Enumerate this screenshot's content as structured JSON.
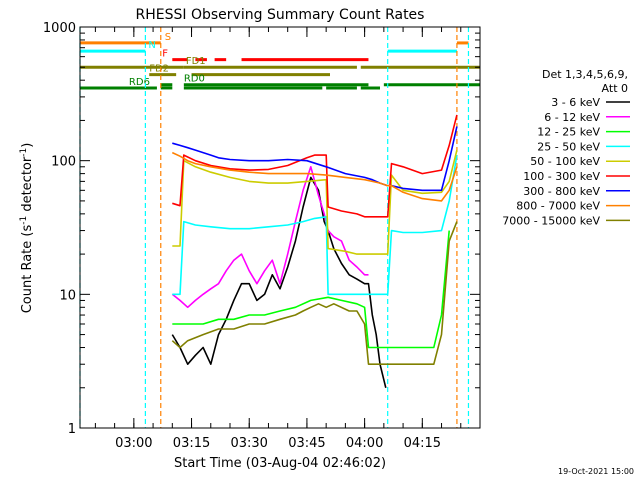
{
  "chart_data": {
    "type": "line",
    "title": "RHESSI Observing Summary Count Rates",
    "xlabel": "Start Time (03-Aug-04 02:46:02)",
    "ylabel_main": "Count Rate (s",
    "ylabel_sup": "-1",
    "ylabel_mid": " detector",
    "ylabel_end": ")",
    "yscale": "log",
    "ylim": [
      1,
      1000
    ],
    "xlim_min": [
      -14,
      90
    ],
    "ytick_labels": [
      "1",
      "10",
      "100",
      "1000"
    ],
    "ytick_values": [
      1,
      10,
      100,
      1000
    ],
    "xtick_labels": [
      "03:00",
      "03:15",
      "03:30",
      "03:45",
      "04:00",
      "04:15"
    ],
    "xtick_values": [
      0,
      15,
      30,
      45,
      60,
      75
    ],
    "legend": {
      "position": "right",
      "header1": "Det 1,3,4,5,6,9,",
      "header2": "Att 0",
      "entries": [
        {
          "label": "3 - 6 keV",
          "color": "#000000"
        },
        {
          "label": "6 - 12 keV",
          "color": "#ff00ff"
        },
        {
          "label": "12 - 25 keV",
          "color": "#00ff00"
        },
        {
          "label": "25 - 50 keV",
          "color": "#00ffff"
        },
        {
          "label": "50 - 100 keV",
          "color": "#cccc00"
        },
        {
          "label": "100 - 300 keV",
          "color": "#ff0000"
        },
        {
          "label": "300 - 800 keV",
          "color": "#0000ff"
        },
        {
          "label": "800 - 7000 keV",
          "color": "#ff8000"
        },
        {
          "label": "7000 - 15000 keV",
          "color": "#808000"
        }
      ]
    },
    "flags": [
      {
        "label": "S",
        "color": "#ff8000",
        "y": 760,
        "segments": [
          [
            -14,
            7
          ],
          [
            84,
            87
          ]
        ]
      },
      {
        "label": "N",
        "color": "#00ffff",
        "y": 660,
        "segments": [
          [
            -14,
            3
          ],
          [
            66,
            84
          ]
        ]
      },
      {
        "label": "F",
        "color": "#ff0000",
        "y": 570,
        "segments": [
          [
            10,
            14
          ],
          [
            16,
            19
          ],
          [
            21,
            24
          ],
          [
            28,
            61
          ]
        ]
      },
      {
        "label": "FD1",
        "color": "#808000",
        "y": 500,
        "segments": [
          [
            -14,
            13
          ],
          [
            13,
            58
          ],
          [
            59,
            90
          ]
        ]
      },
      {
        "label": "FD2",
        "color": "#808000",
        "y": 440,
        "segments": [
          [
            4,
            11
          ],
          [
            15,
            51
          ]
        ]
      },
      {
        "label": "RD0",
        "color": "#008000",
        "y": 370,
        "segments": [
          [
            7,
            10
          ],
          [
            13,
            61
          ],
          [
            65,
            90
          ]
        ]
      },
      {
        "label": "RD6",
        "color": "#008000",
        "y": 350,
        "segments": [
          [
            -14,
            6
          ],
          [
            7,
            10
          ],
          [
            13,
            49
          ],
          [
            50,
            58
          ],
          [
            59,
            64
          ]
        ]
      }
    ],
    "vlines": [
      {
        "x": -14,
        "color": "#00ffff"
      },
      {
        "x": 3,
        "color": "#00ffff"
      },
      {
        "x": 7,
        "color": "#ff8000"
      },
      {
        "x": 66,
        "color": "#00ffff"
      },
      {
        "x": 84,
        "color": "#ff8000"
      },
      {
        "x": 87,
        "color": "#00ffff"
      }
    ],
    "series": [
      {
        "name": "3 - 6 keV",
        "color": "#000000",
        "x": [
          10,
          12,
          14,
          16,
          18,
          20,
          22,
          24,
          26,
          28,
          30,
          32,
          34,
          36,
          38,
          40,
          42,
          44,
          46,
          48,
          49.5,
          50.5,
          52,
          54,
          56,
          58,
          60,
          61,
          62,
          63,
          64,
          65.5
        ],
        "y": [
          5,
          4,
          3,
          3.5,
          4,
          3,
          5,
          6.5,
          9,
          12,
          12,
          9,
          10,
          14,
          11,
          16,
          25,
          45,
          75,
          60,
          35,
          30,
          22,
          17,
          14,
          13,
          12,
          12,
          7,
          5,
          3,
          2
        ]
      },
      {
        "name": "6 - 12 keV",
        "color": "#ff00ff",
        "x": [
          10,
          12,
          14,
          16,
          18,
          20,
          22,
          24,
          26,
          28,
          30,
          32,
          34,
          36,
          38,
          40,
          42,
          44,
          46,
          48,
          49.5,
          50.5,
          52,
          54,
          56,
          58,
          60,
          61
        ],
        "y": [
          10,
          9,
          8,
          9,
          10,
          11,
          12,
          15,
          18,
          20,
          15,
          12,
          15,
          18,
          12,
          20,
          35,
          60,
          90,
          55,
          40,
          30,
          27,
          25,
          18,
          16,
          14,
          14
        ]
      },
      {
        "name": "12 - 25 keV",
        "color": "#00ff00",
        "x": [
          10,
          14,
          18,
          22,
          26,
          30,
          34,
          38,
          42,
          46,
          50.5,
          54,
          58,
          60,
          61,
          64,
          66,
          70,
          74,
          78,
          80,
          82
        ],
        "y": [
          6,
          6,
          6,
          6.5,
          6.5,
          7,
          7,
          7.5,
          8,
          9,
          9.5,
          9,
          8.5,
          8,
          4,
          4,
          4,
          4,
          4,
          4,
          7,
          30
        ]
      },
      {
        "name": "25 - 50 keV",
        "color": "#00ffff",
        "x": [
          10,
          12,
          13,
          16,
          20,
          25,
          30,
          35,
          40,
          44,
          47,
          50,
          50.5,
          55,
          60,
          61,
          64,
          66,
          67,
          70,
          75,
          80,
          82,
          84
        ],
        "y": [
          10,
          10,
          35,
          33,
          32,
          31,
          31,
          32,
          33,
          35,
          37,
          38,
          10,
          10,
          10,
          10,
          10,
          10,
          30,
          29,
          29,
          30,
          50,
          110
        ]
      },
      {
        "name": "50 - 100 keV",
        "color": "#cccc00",
        "x": [
          10,
          12,
          13,
          16,
          20,
          25,
          30,
          35,
          40,
          45,
          50,
          50.5,
          55,
          58,
          60,
          61,
          64,
          65.5,
          66,
          67,
          70,
          75,
          80,
          82,
          84
        ],
        "y": [
          23,
          23,
          100,
          90,
          82,
          75,
          70,
          68,
          68,
          70,
          72,
          22,
          21,
          20,
          20,
          20,
          20,
          20,
          20,
          78,
          60,
          57,
          58,
          70,
          120
        ]
      },
      {
        "name": "100 - 300 keV",
        "color": "#ff0000",
        "x": [
          10,
          12,
          13,
          16,
          20,
          25,
          30,
          35,
          40,
          45,
          47,
          50,
          50.5,
          54,
          58,
          60,
          61,
          64,
          65.5,
          66,
          67,
          70,
          75,
          80,
          82,
          84
        ],
        "y": [
          48,
          46,
          110,
          100,
          92,
          87,
          85,
          86,
          92,
          105,
          110,
          110,
          45,
          42,
          40,
          38,
          38,
          38,
          38,
          38,
          95,
          90,
          80,
          85,
          130,
          220
        ]
      },
      {
        "name": "300 - 800 keV",
        "color": "#0000ff",
        "x": [
          10,
          12,
          14,
          16,
          18,
          20,
          22,
          25,
          30,
          35,
          40,
          45,
          50,
          55,
          60,
          62,
          64,
          66,
          67,
          70,
          75,
          80,
          82,
          84
        ],
        "y": [
          135,
          130,
          125,
          120,
          115,
          110,
          105,
          102,
          100,
          100,
          102,
          100,
          90,
          80,
          75,
          72,
          68,
          65,
          65,
          62,
          60,
          60,
          100,
          180
        ]
      },
      {
        "name": "800 - 7000 keV",
        "color": "#ff8000",
        "x": [
          10,
          12,
          14,
          16,
          20,
          25,
          30,
          35,
          40,
          45,
          50,
          55,
          60,
          62,
          64,
          66,
          67,
          70,
          75,
          80,
          82,
          84
        ],
        "y": [
          115,
          108,
          100,
          95,
          90,
          85,
          82,
          80,
          80,
          80,
          78,
          75,
          72,
          70,
          68,
          65,
          65,
          58,
          52,
          50,
          60,
          90
        ]
      },
      {
        "name": "7000 - 15000 keV",
        "color": "#808000",
        "x": [
          10,
          12,
          14,
          18,
          22,
          26,
          30,
          34,
          38,
          42,
          44,
          46,
          48,
          50,
          52,
          56,
          58,
          60,
          61,
          64,
          66,
          70,
          74,
          78,
          80,
          82,
          84
        ],
        "y": [
          4.5,
          4,
          4.5,
          5,
          5.5,
          5.5,
          6,
          6,
          6.5,
          7,
          7.5,
          8,
          8.5,
          8,
          8.5,
          7.5,
          7.5,
          6,
          3,
          3,
          3,
          3,
          3,
          3,
          5,
          25,
          35
        ]
      }
    ]
  },
  "footer": {
    "date_stamp": "19-Oct-2021 15:00"
  }
}
